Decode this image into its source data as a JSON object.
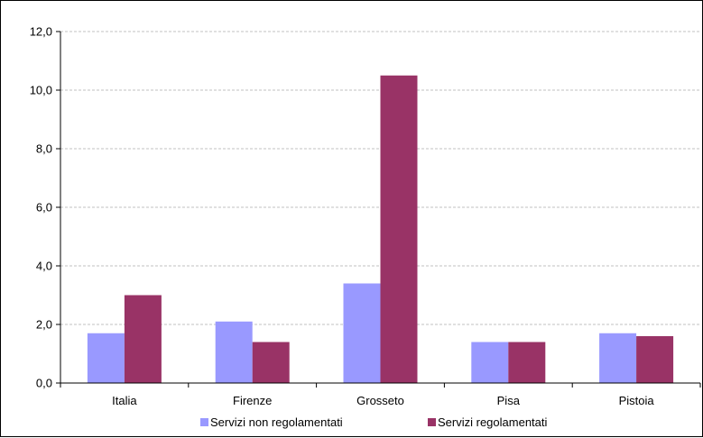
{
  "chart_data": {
    "type": "bar",
    "title": "",
    "xlabel": "",
    "ylabel": "",
    "categories": [
      "Italia",
      "Firenze",
      "Grosseto",
      "Pisa",
      "Pistoia"
    ],
    "series": [
      {
        "name": "Servizi non regolamentati",
        "color": "#9999ff",
        "values": [
          1.7,
          2.1,
          3.4,
          1.4,
          1.7
        ]
      },
      {
        "name": "Servizi regolamentati",
        "color": "#993366",
        "values": [
          3.0,
          1.4,
          10.5,
          1.4,
          1.6
        ]
      }
    ],
    "ylim": [
      0,
      12
    ],
    "yticks": [
      "0,0",
      "2,0",
      "4,0",
      "6,0",
      "8,0",
      "10,0",
      "12,0"
    ],
    "grid": true,
    "legend_position": "bottom"
  }
}
